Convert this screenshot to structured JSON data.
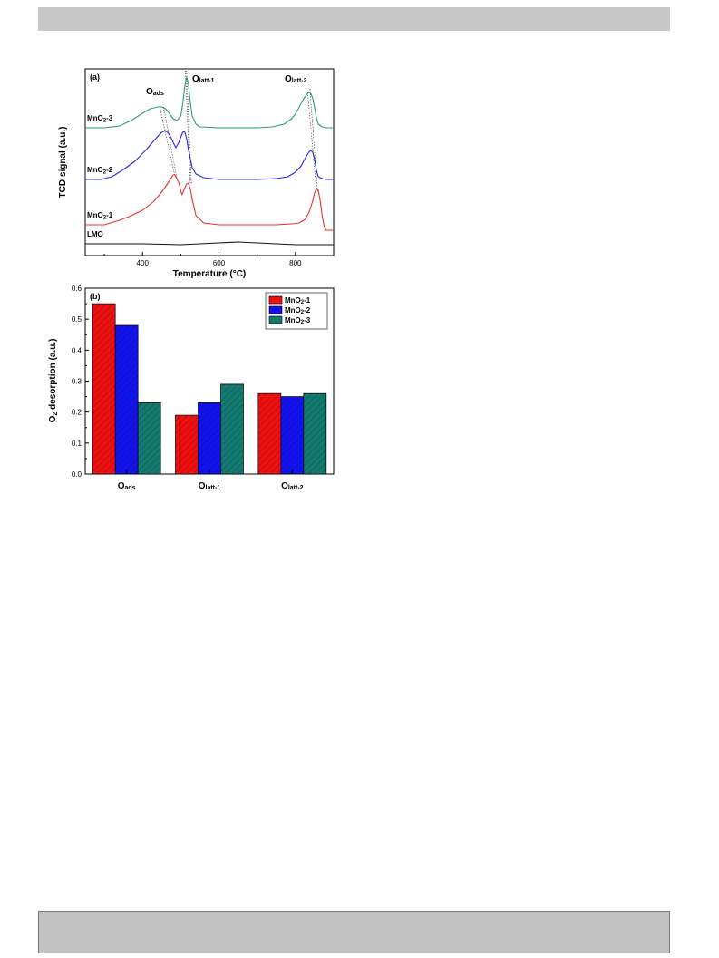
{
  "colors": {
    "mno2_1": "#e8322b",
    "mno2_2": "#2626e0",
    "mno2_3": "#2a9a85",
    "lmo": "#111111",
    "bar_mno2_1": "#ee1111",
    "bar_mno2_2": "#1212ee",
    "bar_mno2_3": "#147a70",
    "header_bar": "#c8c8c8",
    "footer_box": "#c2c2c2"
  },
  "chart_data": [
    {
      "type": "line",
      "panel_label": "(a)",
      "xlabel": "Temperature (°C)",
      "ylabel": "TCD signal (a.u.)",
      "xlim": [
        250,
        900
      ],
      "x_ticks": [
        "400",
        "600",
        "800"
      ],
      "peak_labels": {
        "ads": {
          "main": "O",
          "sub": "ads"
        },
        "latt1": {
          "main": "O",
          "sub": "latt-1"
        },
        "latt2": {
          "main": "O",
          "sub": "latt-2"
        }
      },
      "grid": false,
      "series": [
        {
          "key": "mno2_3",
          "label_main": "MnO",
          "label_sub": "2",
          "label_rest": "-3",
          "x": [
            250,
            300,
            340,
            370,
            400,
            420,
            440,
            450,
            460,
            470,
            480,
            490,
            500,
            505,
            510,
            515,
            520,
            525,
            530,
            540,
            550,
            600,
            650,
            700,
            740,
            770,
            790,
            800,
            810,
            820,
            830,
            835,
            840,
            845,
            850,
            855,
            860,
            870,
            880,
            900
          ],
          "y": [
            141,
            141,
            139,
            133,
            125,
            120,
            118,
            118,
            120,
            125,
            131,
            133,
            128,
            115,
            97,
            85,
            92,
            113,
            128,
            137,
            140,
            141,
            141,
            141,
            140,
            137,
            131,
            126,
            118,
            110,
            104,
            102,
            103,
            108,
            118,
            130,
            137,
            140,
            141,
            141
          ]
        },
        {
          "key": "mno2_2",
          "label_main": "MnO",
          "label_sub": "2",
          "label_rest": "-2",
          "x": [
            250,
            290,
            320,
            350,
            380,
            410,
            430,
            450,
            460,
            470,
            480,
            487,
            495,
            505,
            510,
            515,
            520,
            530,
            540,
            560,
            600,
            650,
            700,
            750,
            780,
            800,
            815,
            825,
            835,
            840,
            845,
            850,
            855,
            860,
            870,
            880,
            900
          ],
          "y": [
            198,
            198,
            195,
            187,
            178,
            165,
            155,
            146,
            144,
            148,
            157,
            163,
            157,
            146,
            145,
            152,
            165,
            185,
            192,
            196,
            198,
            198,
            198,
            197,
            195,
            190,
            183,
            175,
            168,
            166,
            168,
            175,
            188,
            195,
            197,
            198,
            198
          ]
        },
        {
          "key": "mno2_1",
          "label_main": "MnO",
          "label_sub": "2",
          "label_rest": "-1",
          "x": [
            250,
            300,
            340,
            370,
            400,
            430,
            450,
            470,
            480,
            485,
            495,
            503,
            508,
            515,
            520,
            525,
            530,
            540,
            560,
            600,
            650,
            700,
            750,
            790,
            810,
            825,
            835,
            845,
            850,
            855,
            860,
            865,
            870,
            875,
            880,
            890,
            900
          ],
          "y": [
            248,
            248,
            243,
            238,
            232,
            222,
            212,
            200,
            193,
            193,
            202,
            215,
            210,
            203,
            202,
            208,
            220,
            238,
            246,
            248,
            248,
            248,
            248,
            247,
            246,
            242,
            235,
            222,
            213,
            208,
            210,
            222,
            238,
            250,
            254,
            254,
            254
          ]
        },
        {
          "key": "lmo",
          "label_main": "LMO",
          "label_sub": "",
          "label_rest": "",
          "x": [
            250,
            400,
            500,
            550,
            600,
            650,
            700,
            750,
            800,
            900
          ],
          "y": [
            269,
            269,
            270,
            269,
            268,
            267,
            268,
            269,
            270,
            270
          ]
        }
      ],
      "guide_lines": [
        {
          "x1": 445,
          "y1": 118,
          "x2": 485,
          "y2": 195
        },
        {
          "x1": 455,
          "y1": 118,
          "x2": 490,
          "y2": 197
        },
        {
          "x1": 512,
          "y1": 78,
          "x2": 525,
          "y2": 202
        },
        {
          "x1": 515,
          "y1": 78,
          "x2": 528,
          "y2": 203
        },
        {
          "x1": 832,
          "y1": 102,
          "x2": 855,
          "y2": 210
        },
        {
          "x1": 838,
          "y1": 98,
          "x2": 858,
          "y2": 212
        }
      ]
    },
    {
      "type": "bar",
      "panel_label": "(b)",
      "ylabel": "O2 desorption (a.u.)",
      "ylabel_main": "O",
      "ylabel_sub": "2",
      "ylabel_rest": " desorption (a.u.)",
      "ylim": [
        0.0,
        0.6
      ],
      "y_ticks": [
        "0.0",
        "0.1",
        "0.2",
        "0.3",
        "0.4",
        "0.5",
        "0.6"
      ],
      "categories": [
        {
          "main": "O",
          "sub": "ads"
        },
        {
          "main": "O",
          "sub": "latt-1"
        },
        {
          "main": "O",
          "sub": "latt-2"
        }
      ],
      "legend_position": "top-right",
      "series": [
        {
          "key": "bar_mno2_1",
          "name": "MnO2-1",
          "name_main": "MnO",
          "name_sub": "2",
          "name_rest": "-1",
          "values": [
            0.55,
            0.19,
            0.26
          ]
        },
        {
          "key": "bar_mno2_2",
          "name": "MnO2-2",
          "name_main": "MnO",
          "name_sub": "2",
          "name_rest": "-2",
          "values": [
            0.48,
            0.23,
            0.25
          ]
        },
        {
          "key": "bar_mno2_3",
          "name": "MnO2-3",
          "name_main": "MnO",
          "name_sub": "2",
          "name_rest": "-3",
          "values": [
            0.23,
            0.29,
            0.26
          ]
        }
      ]
    }
  ]
}
